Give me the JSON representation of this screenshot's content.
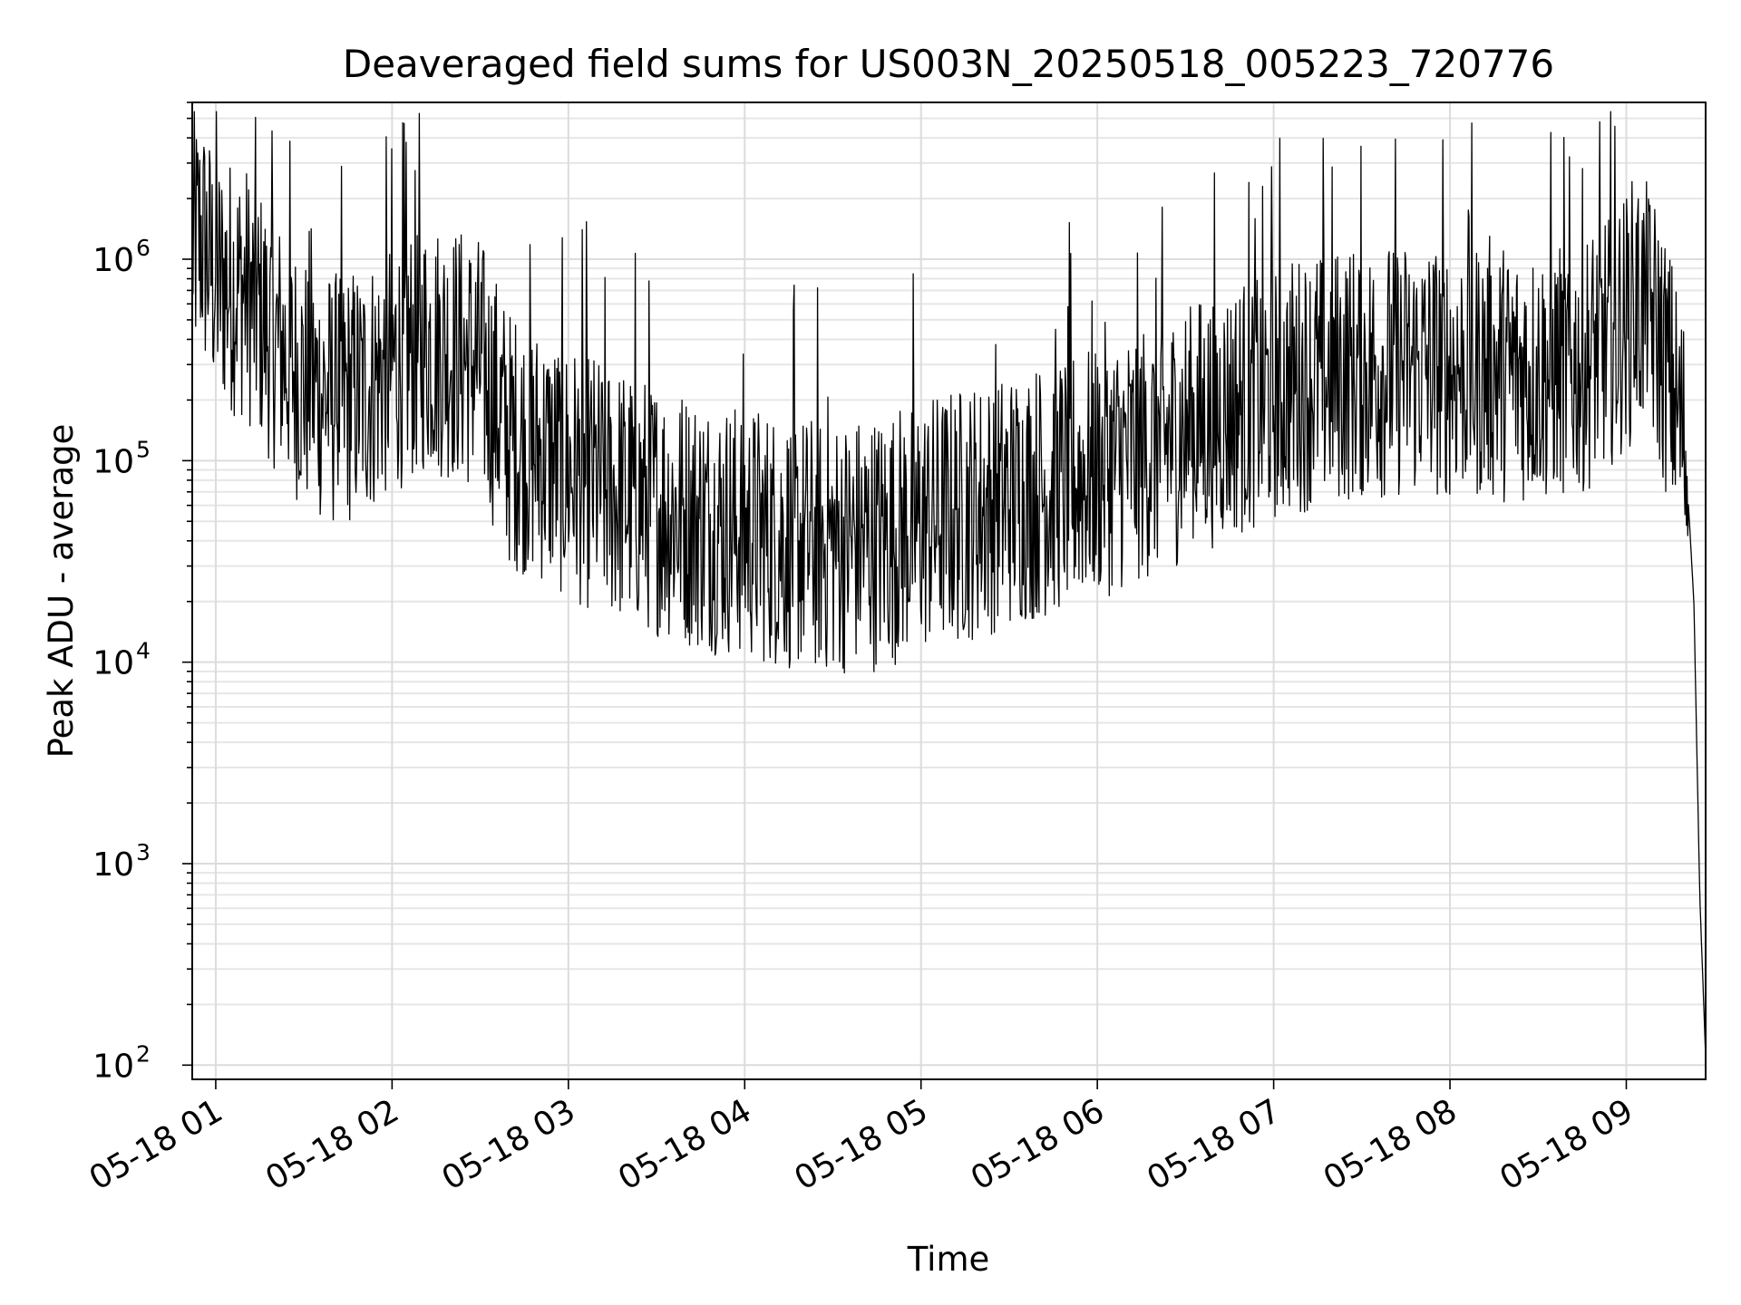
{
  "chart_data": {
    "type": "line",
    "title": "Deaveraged field sums for US003N_20250518_005223_720776",
    "xlabel": "Time",
    "ylabel": "Peak ADU - average",
    "yscale": "log",
    "grid": "on (major and minor)",
    "legend": "none",
    "x_tick_labels": [
      "05-18 01",
      "05-18 02",
      "05-18 03",
      "05-18 04",
      "05-18 05",
      "05-18 06",
      "05-18 07",
      "05-18 08",
      "05-18 09"
    ],
    "y_tick_labels": [
      {
        "base": "10",
        "exp": "2"
      },
      {
        "base": "10",
        "exp": "3"
      },
      {
        "base": "10",
        "exp": "4"
      },
      {
        "base": "10",
        "exp": "5"
      },
      {
        "base": "10",
        "exp": "6"
      }
    ],
    "xlim": [
      "2025-05-18 00:52",
      "2025-05-18 09:27"
    ],
    "ylim": [
      85,
      6000000
    ],
    "series": [
      {
        "color": "#000000",
        "x": [
          "2025-05-18 00:52",
          "2025-05-18 00:55",
          "2025-05-18 01:00",
          "2025-05-18 01:10",
          "2025-05-18 01:20",
          "2025-05-18 01:30",
          "2025-05-18 01:40",
          "2025-05-18 01:50",
          "2025-05-18 02:00",
          "2025-05-18 02:10",
          "2025-05-18 02:20",
          "2025-05-18 02:30",
          "2025-05-18 02:40",
          "2025-05-18 02:50",
          "2025-05-18 03:00",
          "2025-05-18 03:15",
          "2025-05-18 03:30",
          "2025-05-18 03:45",
          "2025-05-18 04:00",
          "2025-05-18 04:15",
          "2025-05-18 04:30",
          "2025-05-18 04:45",
          "2025-05-18 05:00",
          "2025-05-18 05:15",
          "2025-05-18 05:30",
          "2025-05-18 05:45",
          "2025-05-18 06:00",
          "2025-05-18 06:15",
          "2025-05-18 06:30",
          "2025-05-18 06:45",
          "2025-05-18 07:00",
          "2025-05-18 07:15",
          "2025-05-18 07:30",
          "2025-05-18 07:45",
          "2025-05-18 08:00",
          "2025-05-18 08:15",
          "2025-05-18 08:30",
          "2025-05-18 08:45",
          "2025-05-18 09:00",
          "2025-05-18 09:05",
          "2025-05-18 09:10",
          "2025-05-18 09:15",
          "2025-05-18 09:20",
          "2025-05-18 09:23",
          "2025-05-18 09:25",
          "2025-05-18 09:27"
        ],
        "y": [
          1200000,
          1300000,
          800000,
          700000,
          400000,
          250000,
          200000,
          220000,
          300000,
          380000,
          350000,
          300000,
          130000,
          110000,
          90000,
          70000,
          60000,
          50000,
          45000,
          40000,
          38000,
          40000,
          48000,
          55000,
          65000,
          75000,
          90000,
          110000,
          140000,
          180000,
          220000,
          260000,
          280000,
          290000,
          290000,
          280000,
          270000,
          300000,
          500000,
          600000,
          450000,
          250000,
          120000,
          20000,
          700,
          110
        ]
      }
    ]
  }
}
